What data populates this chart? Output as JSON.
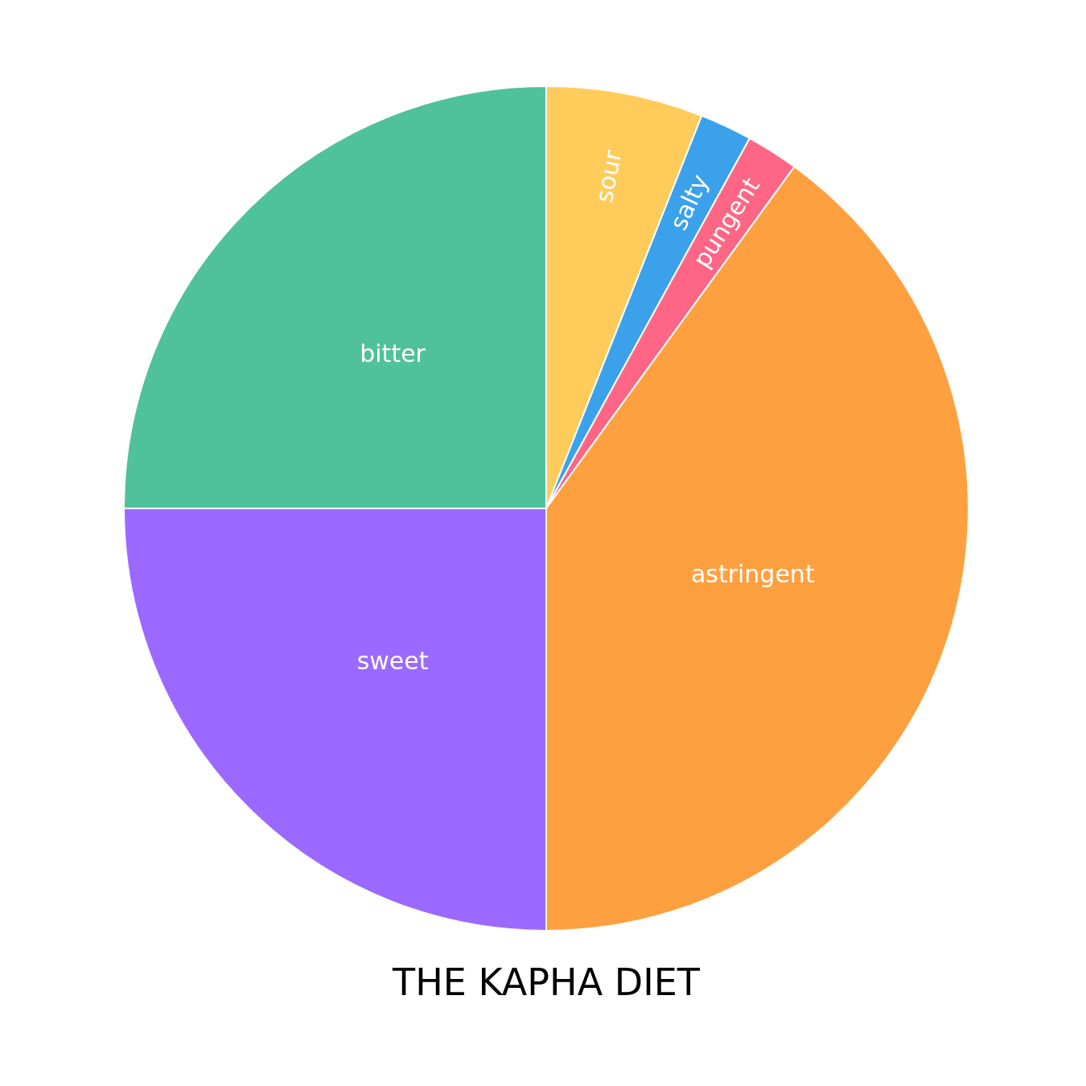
{
  "chart_data": {
    "type": "pie",
    "title": "THE KAPHA DIET",
    "categories": [
      "sour",
      "salty",
      "pungent",
      "astringent",
      "sweet",
      "bitter"
    ],
    "values": [
      6,
      2,
      2,
      40,
      25,
      25
    ],
    "colors": [
      "#ffcc5c",
      "#3ba1ea",
      "#ff6685",
      "#ffa040",
      "#9b69ff",
      "#4fc19b"
    ],
    "legend": false
  }
}
